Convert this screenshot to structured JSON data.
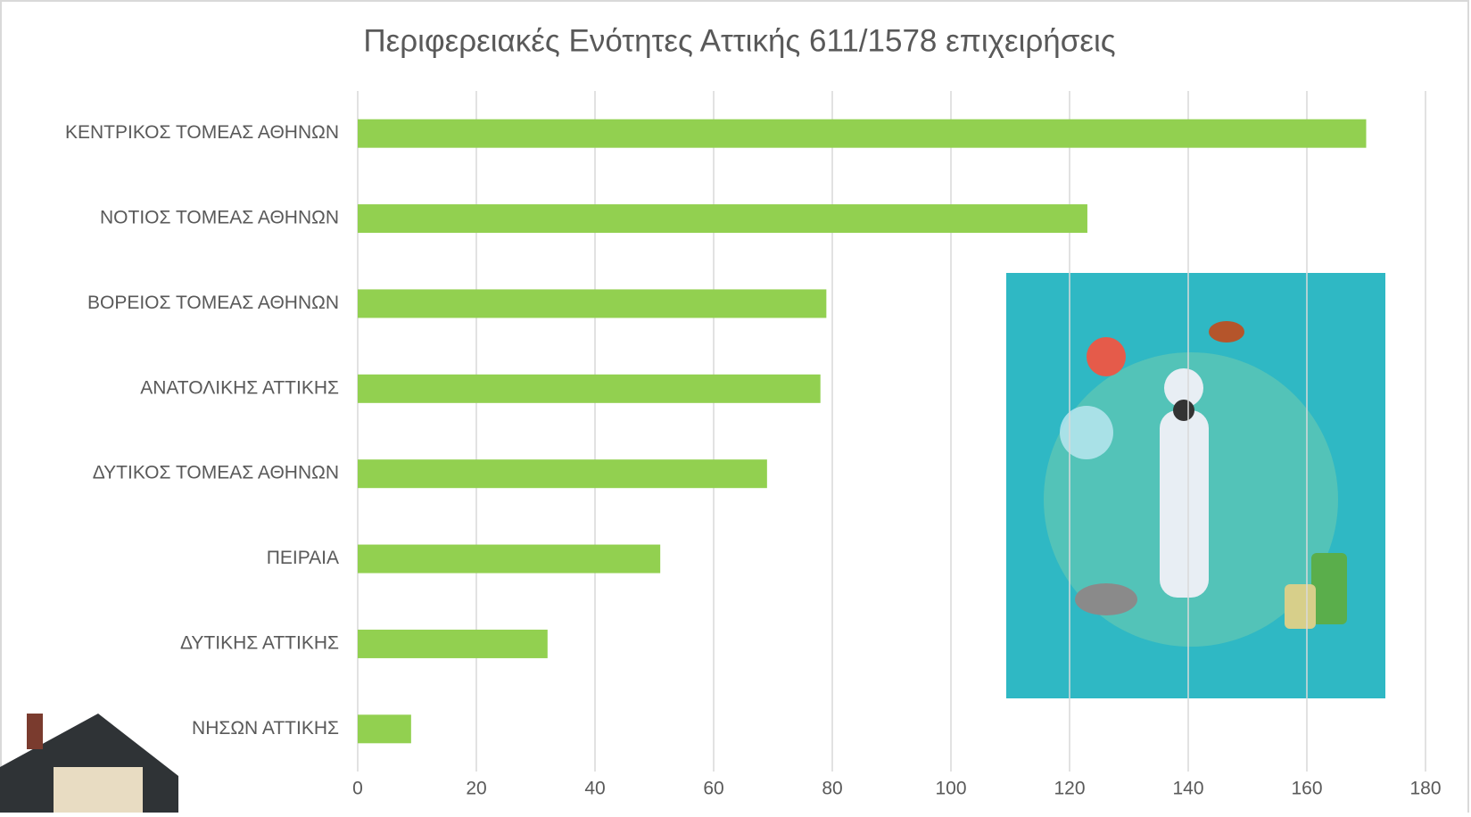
{
  "chart_data": {
    "type": "bar",
    "orientation": "horizontal",
    "title": "Περιφερειακές Ενότητες Αττικής 611/1578 επιχειρήσεις",
    "categories": [
      "ΚΕΝΤΡΙΚΟΣ ΤΟΜΕΑΣ ΑΘΗΝΩΝ",
      "ΝΟΤΙΟΣ ΤΟΜΕΑΣ ΑΘΗΝΩΝ",
      "ΒΟΡΕΙΟΣ ΤΟΜΕΑΣ ΑΘΗΝΩΝ",
      "ΑΝΑΤΟΛΙΚΗΣ ΑΤΤΙΚΗΣ",
      "ΔΥΤΙΚΟΣ ΤΟΜΕΑΣ ΑΘΗΝΩΝ",
      "ΠΕΙΡΑΙΑ",
      "ΔΥΤΙΚΗΣ ΑΤΤΙΚΗΣ",
      "ΝΗΣΩΝ ΑΤΤΙΚΗΣ"
    ],
    "values": [
      170,
      123,
      79,
      78,
      69,
      51,
      32,
      9
    ],
    "color": "#92d050",
    "xlim": [
      0,
      180
    ],
    "xticks": [
      0,
      20,
      40,
      60,
      80,
      100,
      120,
      140,
      160,
      180
    ],
    "grid": true
  }
}
